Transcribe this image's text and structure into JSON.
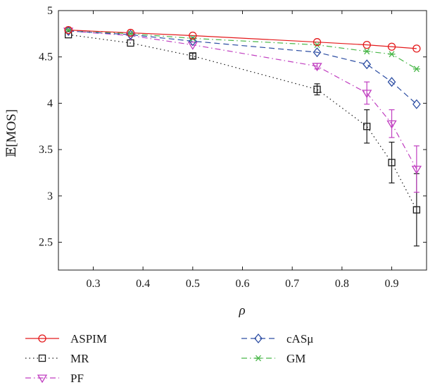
{
  "chart_data": {
    "type": "line",
    "xlabel": "ρ",
    "ylabel": "𝔼[MOS]",
    "xlim": [
      0.23,
      0.97
    ],
    "ylim": [
      2.2,
      5.0
    ],
    "xticks": [
      0.3,
      0.4,
      0.5,
      0.6,
      0.7,
      0.8,
      0.9
    ],
    "xtick_labels": [
      "0.3",
      "0.4",
      "0.5",
      "0.6",
      "0.7",
      "0.8",
      "0.9"
    ],
    "yticks": [
      2.5,
      3,
      3.5,
      4,
      4.5,
      5
    ],
    "ytick_labels": [
      "2.5",
      "3",
      "3.5",
      "4",
      "4.5",
      "5"
    ],
    "grid": false,
    "legend_position": "below",
    "x": [
      0.25,
      0.375,
      0.5,
      0.75,
      0.85,
      0.9,
      0.95
    ],
    "series": [
      {
        "name": "ASPIM",
        "color": "#e41a1c",
        "dash": "solid",
        "marker": "circle",
        "values": [
          4.79,
          4.76,
          4.73,
          4.66,
          4.63,
          4.61,
          4.59
        ],
        "errors": [
          0,
          0,
          0,
          0,
          0,
          0,
          0
        ]
      },
      {
        "name": "MR",
        "color": "#1a1a1a",
        "dash": "dotted",
        "marker": "square",
        "values": [
          4.74,
          4.65,
          4.51,
          4.15,
          3.75,
          3.36,
          2.85
        ],
        "errors": [
          0,
          0,
          0.03,
          0.06,
          0.18,
          0.22,
          0.39
        ]
      },
      {
        "name": "PF",
        "color": "#c03ec0",
        "dash": "dashdot",
        "marker": "triangle-down",
        "values": [
          4.78,
          4.73,
          4.63,
          4.4,
          4.11,
          3.78,
          3.29
        ],
        "errors": [
          0,
          0,
          0,
          0.03,
          0.12,
          0.15,
          0.25
        ]
      },
      {
        "name": "cASμ",
        "color": "#2d4ea3",
        "dash": "dashed",
        "marker": "diamond",
        "values": [
          4.78,
          4.74,
          4.67,
          4.55,
          4.42,
          4.23,
          3.99
        ],
        "errors": [
          0,
          0,
          0,
          0,
          0,
          0,
          0
        ]
      },
      {
        "name": "GM",
        "color": "#49b749",
        "dash": "dashdot",
        "marker": "asterisk",
        "values": [
          4.79,
          4.75,
          4.7,
          4.63,
          4.56,
          4.53,
          4.37
        ],
        "errors": [
          0,
          0,
          0,
          0,
          0,
          0,
          0
        ]
      }
    ]
  }
}
